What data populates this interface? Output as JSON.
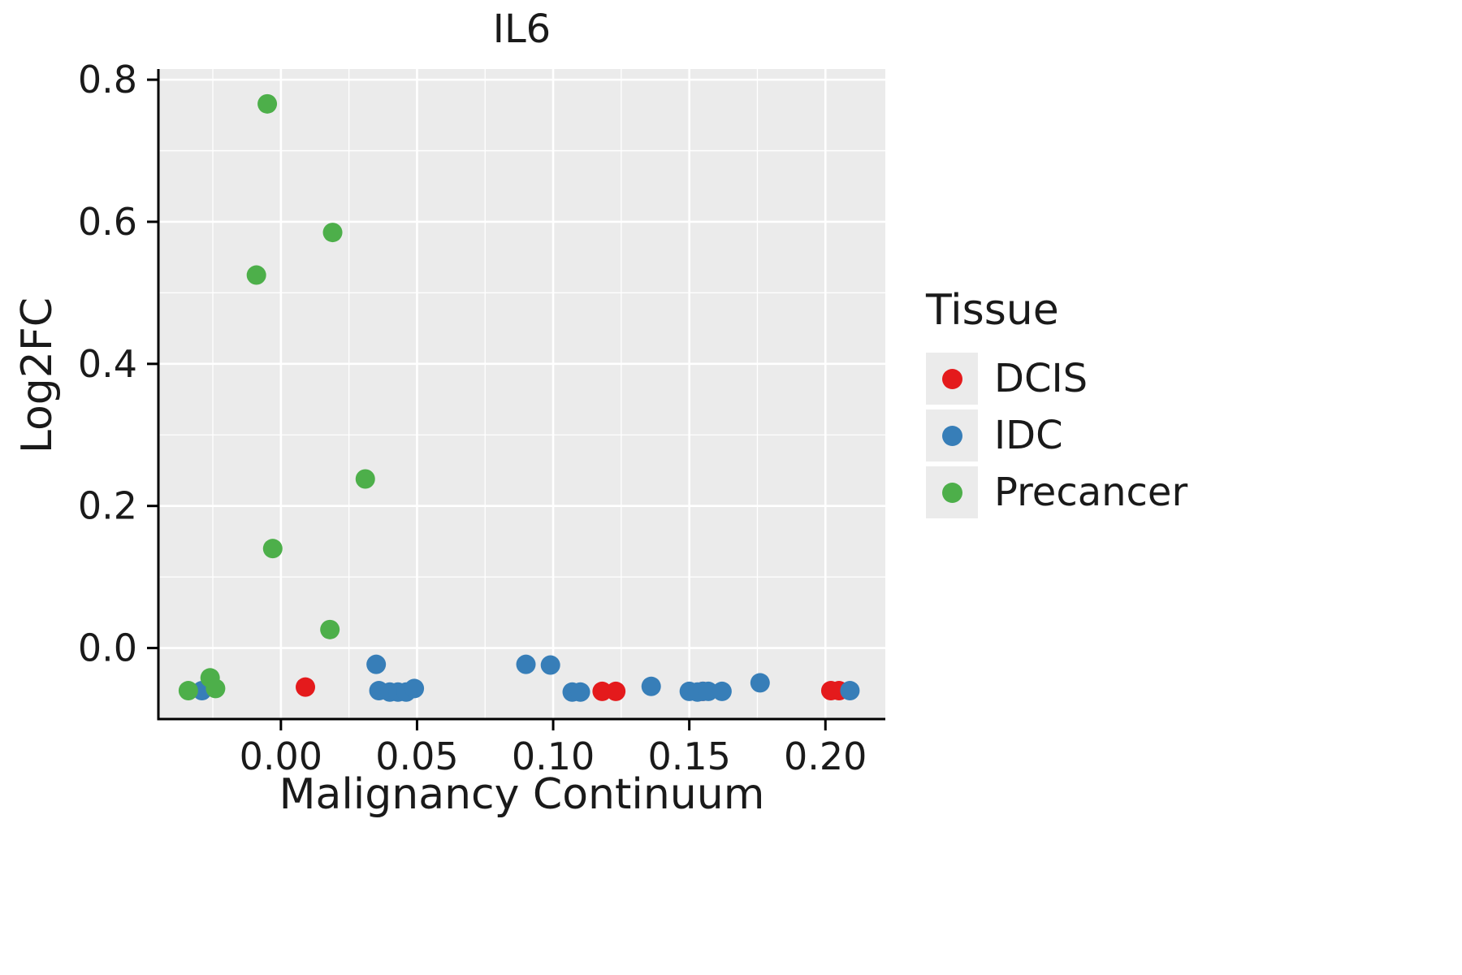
{
  "chart_data": {
    "type": "scatter",
    "title": "IL6",
    "xlabel": "Malignancy Continuum",
    "ylabel": "Log2FC",
    "legend_title": "Tissue",
    "xlim": [
      -0.045,
      0.222
    ],
    "ylim": [
      -0.1,
      0.815
    ],
    "xticks": [
      0.0,
      0.05,
      0.1,
      0.15,
      0.2
    ],
    "xtick_labels": [
      "0.00",
      "0.05",
      "0.10",
      "0.15",
      "0.20"
    ],
    "yticks": [
      0.0,
      0.2,
      0.4,
      0.6,
      0.8
    ],
    "ytick_labels": [
      "0.0",
      "0.2",
      "0.4",
      "0.6",
      "0.8"
    ],
    "grid": true,
    "panel_color": "#ebebeb",
    "grid_color": "#ffffff",
    "legend_position": "right",
    "series": [
      {
        "name": "DCIS",
        "color": "#e41a1c",
        "points": [
          [
            0.009,
            -0.055
          ],
          [
            0.118,
            -0.061
          ],
          [
            0.123,
            -0.061
          ],
          [
            0.155,
            -0.061
          ],
          [
            0.202,
            -0.06
          ],
          [
            0.205,
            -0.06
          ]
        ]
      },
      {
        "name": "IDC",
        "color": "#377eb8",
        "points": [
          [
            -0.029,
            -0.06
          ],
          [
            0.035,
            -0.023
          ],
          [
            0.036,
            -0.06
          ],
          [
            0.04,
            -0.062
          ],
          [
            0.043,
            -0.062
          ],
          [
            0.046,
            -0.062
          ],
          [
            0.049,
            -0.057
          ],
          [
            0.09,
            -0.023
          ],
          [
            0.099,
            -0.024
          ],
          [
            0.107,
            -0.062
          ],
          [
            0.11,
            -0.062
          ],
          [
            0.136,
            -0.054
          ],
          [
            0.15,
            -0.061
          ],
          [
            0.153,
            -0.062
          ],
          [
            0.155,
            -0.061
          ],
          [
            0.157,
            -0.061
          ],
          [
            0.162,
            -0.061
          ],
          [
            0.176,
            -0.049
          ],
          [
            0.209,
            -0.06
          ]
        ]
      },
      {
        "name": "Precancer",
        "color": "#4daf4a",
        "points": [
          [
            -0.005,
            0.766
          ],
          [
            0.019,
            0.585
          ],
          [
            -0.009,
            0.525
          ],
          [
            0.031,
            0.238
          ],
          [
            -0.003,
            0.14
          ],
          [
            0.018,
            0.026
          ],
          [
            -0.034,
            -0.06
          ],
          [
            -0.026,
            -0.042
          ],
          [
            -0.024,
            -0.057
          ]
        ]
      }
    ]
  }
}
